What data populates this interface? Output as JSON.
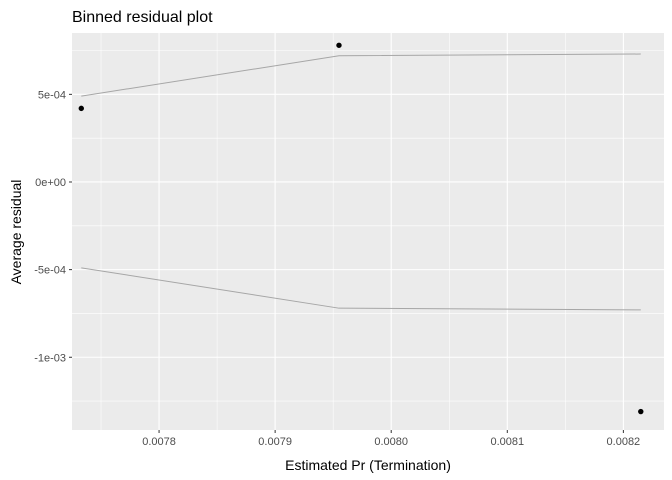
{
  "chart_data": {
    "type": "scatter",
    "title": "Binned residual plot",
    "xlabel": "Estimated  Pr (Termination)",
    "ylabel": "Average residual",
    "xlim": [
      0.007725,
      0.008235
    ],
    "ylim": [
      -0.001415,
      0.00085
    ],
    "x_ticks": [
      0.0078,
      0.0079,
      0.008,
      0.0081,
      0.0082
    ],
    "x_tick_labels": [
      "0.0078",
      "0.0079",
      "0.0080",
      "0.0081",
      "0.0082"
    ],
    "y_ticks": [
      0.0005,
      0.0,
      -0.0005,
      -0.001
    ],
    "y_tick_labels": [
      "5e-04",
      "0e+00",
      "-5e-04",
      "-1e-03"
    ],
    "grid": true,
    "points": [
      {
        "x": 0.007733,
        "y": 0.00042
      },
      {
        "x": 0.007955,
        "y": 0.00078
      },
      {
        "x": 0.008215,
        "y": -0.00131
      }
    ],
    "bands": {
      "x": [
        0.007733,
        0.007955,
        0.008215
      ],
      "upper": [
        0.00049,
        0.00072,
        0.00073
      ],
      "lower": [
        -0.00049,
        -0.00072,
        -0.00073
      ]
    },
    "colors": {
      "panel": "#ebebeb",
      "grid": "#ffffff",
      "point": "#000000",
      "band": "#a6a6a6"
    }
  }
}
